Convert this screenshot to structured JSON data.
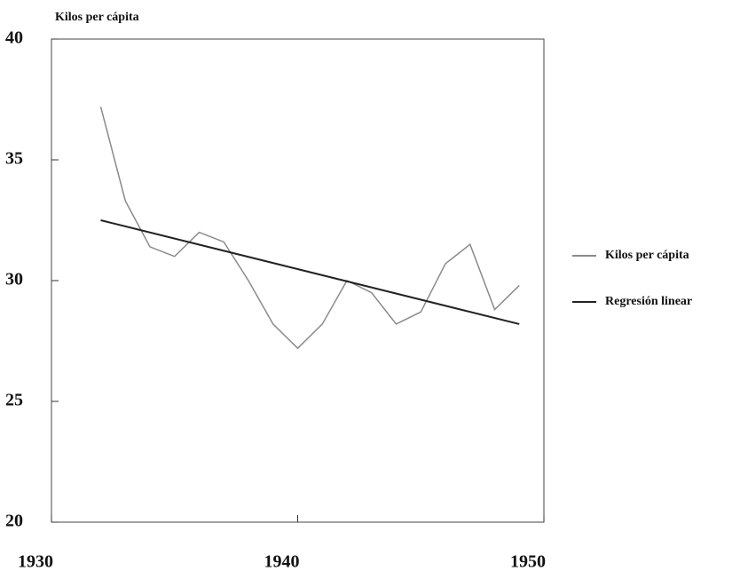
{
  "chart_data": {
    "type": "line",
    "y_label": "Kilos per cápita",
    "series": [
      {
        "name": "Kilos per cápita",
        "color": "#8a8a8a",
        "x": [
          1932,
          1933,
          1934,
          1935,
          1936,
          1937,
          1938,
          1939,
          1940,
          1941,
          1942,
          1943,
          1944,
          1945,
          1946,
          1947,
          1948,
          1949
        ],
        "values": [
          37.2,
          33.3,
          31.4,
          31.0,
          32.0,
          31.6,
          30.0,
          28.2,
          27.2,
          28.2,
          30.0,
          29.5,
          28.2,
          28.7,
          30.7,
          31.5,
          28.8,
          29.8
        ]
      },
      {
        "name": "Regresión linear",
        "color": "#222222",
        "x": [
          1932,
          1949
        ],
        "values": [
          32.5,
          28.2
        ]
      }
    ],
    "xlim": [
      1930,
      1950
    ],
    "xticks": [
      1930,
      1940,
      1950
    ],
    "ylim": [
      20,
      40
    ],
    "yticks": [
      20,
      25,
      30,
      35,
      40
    ],
    "legend": "right",
    "grid": false
  }
}
